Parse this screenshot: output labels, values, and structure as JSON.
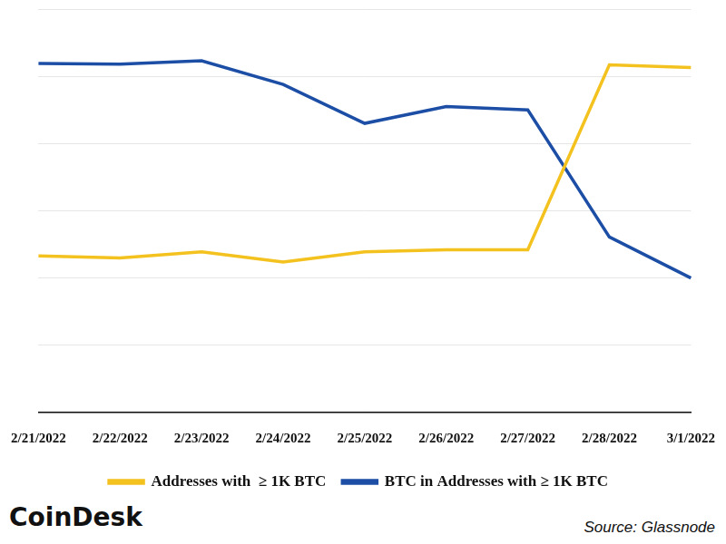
{
  "chart_data": {
    "type": "line",
    "categories": [
      "2/21/2022",
      "2/22/2022",
      "2/23/2022",
      "2/24/2022",
      "2/25/2022",
      "2/26/2022",
      "2/27/2022",
      "2/28/2022",
      "3/1/2022"
    ],
    "series": [
      {
        "name": "Addresses with  ≥ 1K BTC",
        "color": "#f4c21f",
        "values": [
          2.33,
          2.3,
          2.39,
          2.24,
          2.39,
          2.42,
          2.42,
          5.17,
          5.13
        ]
      },
      {
        "name": "BTC in Addresses with ≥ 1K BTC",
        "color": "#1c4ea6",
        "values": [
          5.19,
          5.18,
          5.23,
          4.88,
          4.3,
          4.55,
          4.5,
          2.61,
          2.0
        ]
      }
    ],
    "ylim": [
      0,
      6
    ],
    "yticks": [
      0,
      1,
      2,
      3,
      4,
      5,
      6
    ],
    "grid": true,
    "legend": "bottom",
    "tick_labels": "x",
    "logo": "CoinDesk",
    "source": "Source: Glassnode"
  }
}
